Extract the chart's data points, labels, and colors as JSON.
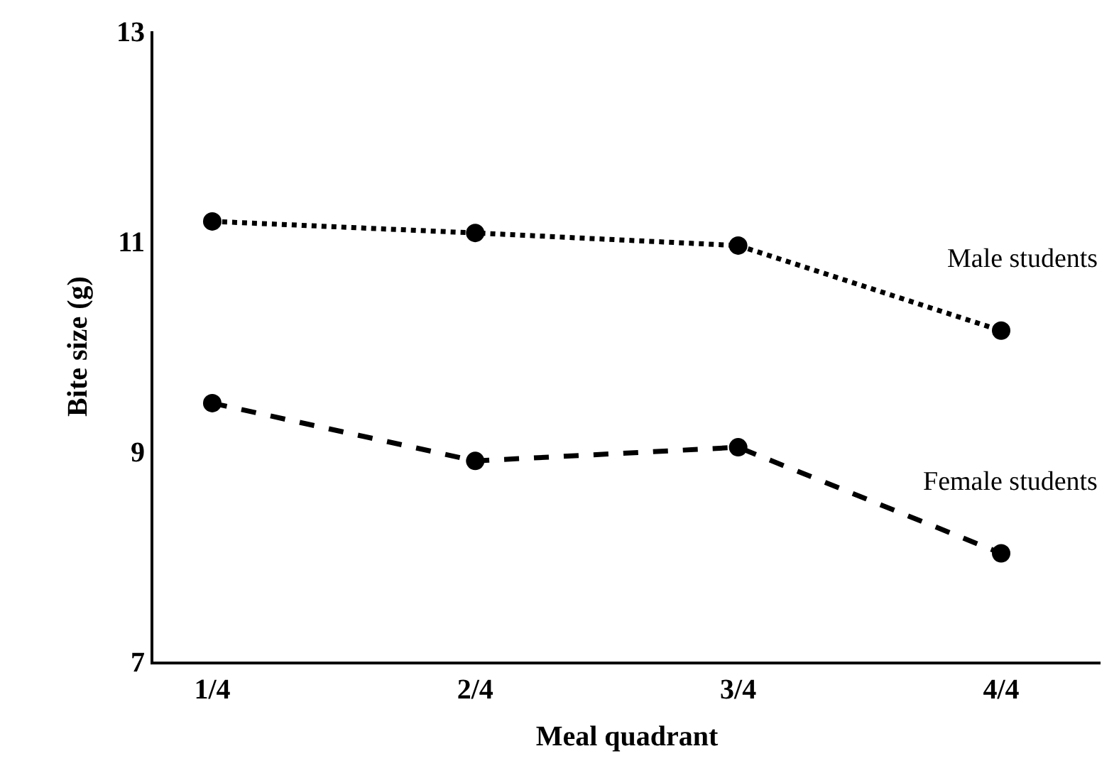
{
  "chart_data": {
    "type": "line",
    "xlabel": "Meal quadrant",
    "ylabel": "Bite size (g)",
    "categories": [
      "1/4",
      "2/4",
      "3/4",
      "4/4"
    ],
    "series": [
      {
        "name": "Male students",
        "color": "#000000",
        "values": [
          11.19,
          11.08,
          10.96,
          10.15
        ],
        "line_style": "dotted"
      },
      {
        "name": "Female students",
        "color": "#000000",
        "values": [
          9.46,
          8.91,
          9.04,
          8.03
        ],
        "line_style": "dashed"
      }
    ],
    "ylim": [
      7,
      13
    ],
    "yticks": [
      7,
      9,
      11,
      13
    ],
    "legend": false,
    "marker": "circle"
  }
}
